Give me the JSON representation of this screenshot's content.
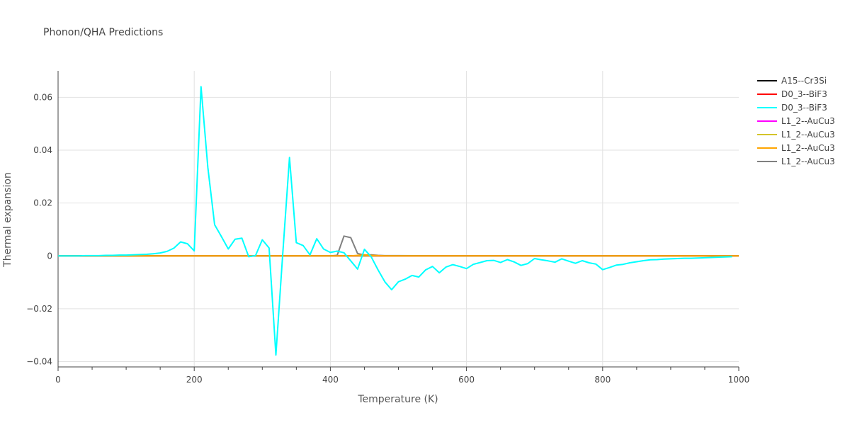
{
  "chart_data": {
    "type": "line",
    "title": "Phonon/QHA Predictions",
    "xlabel": "Temperature (K)",
    "ylabel": "Thermal expansion",
    "xlim": [
      0,
      1000
    ],
    "ylim": [
      -0.042,
      0.07
    ],
    "x_ticks": [
      0,
      200,
      400,
      600,
      800,
      1000
    ],
    "x_tick_labels": [
      "0",
      "200",
      "400",
      "600",
      "800",
      "1000"
    ],
    "y_ticks": [
      -0.04,
      -0.02,
      0,
      0.02,
      0.04,
      0.06
    ],
    "y_tick_labels": [
      "−0.04",
      "−0.02",
      "0",
      "0.02",
      "0.04",
      "0.06"
    ],
    "grid": true,
    "legend_position": "right",
    "series": [
      {
        "name": "A15--Cr3Si",
        "color": "#000000",
        "x": [
          0,
          1000
        ],
        "y": [
          0,
          0
        ]
      },
      {
        "name": "D0_3--BiF3",
        "color": "#ff0000",
        "x": [
          0,
          1000
        ],
        "y": [
          0,
          0
        ]
      },
      {
        "name": "D0_3--BiF3",
        "color": "#00ffff",
        "x": [
          0,
          10,
          20,
          30,
          40,
          50,
          60,
          70,
          80,
          90,
          100,
          110,
          120,
          130,
          140,
          150,
          160,
          170,
          180,
          190,
          200,
          210,
          220,
          230,
          240,
          250,
          260,
          270,
          280,
          290,
          300,
          310,
          320,
          330,
          340,
          350,
          360,
          370,
          380,
          390,
          400,
          410,
          420,
          430,
          440,
          450,
          460,
          470,
          480,
          490,
          500,
          510,
          520,
          530,
          540,
          550,
          560,
          570,
          580,
          590,
          600,
          610,
          620,
          630,
          640,
          650,
          660,
          670,
          680,
          690,
          700,
          710,
          720,
          730,
          740,
          750,
          760,
          770,
          780,
          790,
          800,
          810,
          820,
          830,
          840,
          850,
          860,
          870,
          880,
          890,
          900,
          910,
          920,
          930,
          940,
          950,
          960,
          970,
          980,
          990
        ],
        "y": [
          0,
          0,
          0,
          0,
          0.0001,
          0.0001,
          0.0001,
          0.0002,
          0.0002,
          0.0003,
          0.0003,
          0.0004,
          0.0005,
          0.0006,
          0.0008,
          0.0011,
          0.0017,
          0.0029,
          0.0053,
          0.0046,
          0.0019,
          0.064,
          0.0335,
          0.0118,
          0.0073,
          0.0026,
          0.0063,
          0.0067,
          -0.0003,
          0.0001,
          0.0061,
          0.003,
          -0.0375,
          0.0005,
          0.0372,
          0.005,
          0.0039,
          0.0004,
          0.0065,
          0.0026,
          0.0013,
          0.0018,
          0.0012,
          -0.0019,
          -0.005,
          0.0025,
          -0.0004,
          -0.0053,
          -0.0098,
          -0.0128,
          -0.0098,
          -0.0088,
          -0.0074,
          -0.008,
          -0.0053,
          -0.004,
          -0.0064,
          -0.0042,
          -0.0033,
          -0.004,
          -0.0048,
          -0.0032,
          -0.0025,
          -0.0018,
          -0.0017,
          -0.0025,
          -0.0014,
          -0.0023,
          -0.0036,
          -0.0029,
          -0.001,
          -0.0015,
          -0.0019,
          -0.0024,
          -0.0011,
          -0.002,
          -0.0028,
          -0.0018,
          -0.0026,
          -0.0031,
          -0.0052,
          -0.0044,
          -0.0035,
          -0.0032,
          -0.0026,
          -0.0022,
          -0.0018,
          -0.0015,
          -0.0014,
          -0.0012,
          -0.0011,
          -0.001,
          -0.0009,
          -0.0009,
          -0.0008,
          -0.0007,
          -0.0006,
          -0.0005,
          -0.0004,
          -0.0003
        ]
      },
      {
        "name": "L1_2--AuCu3",
        "color": "#ff00ff",
        "x": [
          0,
          1000
        ],
        "y": [
          0,
          0
        ]
      },
      {
        "name": "L1_2--AuCu3",
        "color": "#d4c42a",
        "x": [
          0,
          1000
        ],
        "y": [
          0,
          0
        ]
      },
      {
        "name": "L1_2--AuCu3",
        "color": "#ffa500",
        "x": [
          0,
          410,
          420,
          430,
          440,
          450,
          460,
          470,
          480,
          500,
          600,
          800,
          1000
        ],
        "y": [
          0,
          0,
          0,
          0,
          0.0002,
          0.0004,
          0.0002,
          0.0001,
          0,
          0,
          0,
          0,
          0
        ]
      },
      {
        "name": "L1_2--AuCu3",
        "color": "#808080",
        "x": [
          0,
          400,
          410,
          420,
          430,
          440,
          450,
          460,
          470,
          480,
          500,
          600,
          800,
          1000
        ],
        "y": [
          0,
          0,
          0.0002,
          0.0075,
          0.0069,
          0.0009,
          0.0003,
          0.0004,
          0.0002,
          0.0001,
          0.0001,
          0,
          0,
          0
        ]
      }
    ]
  }
}
